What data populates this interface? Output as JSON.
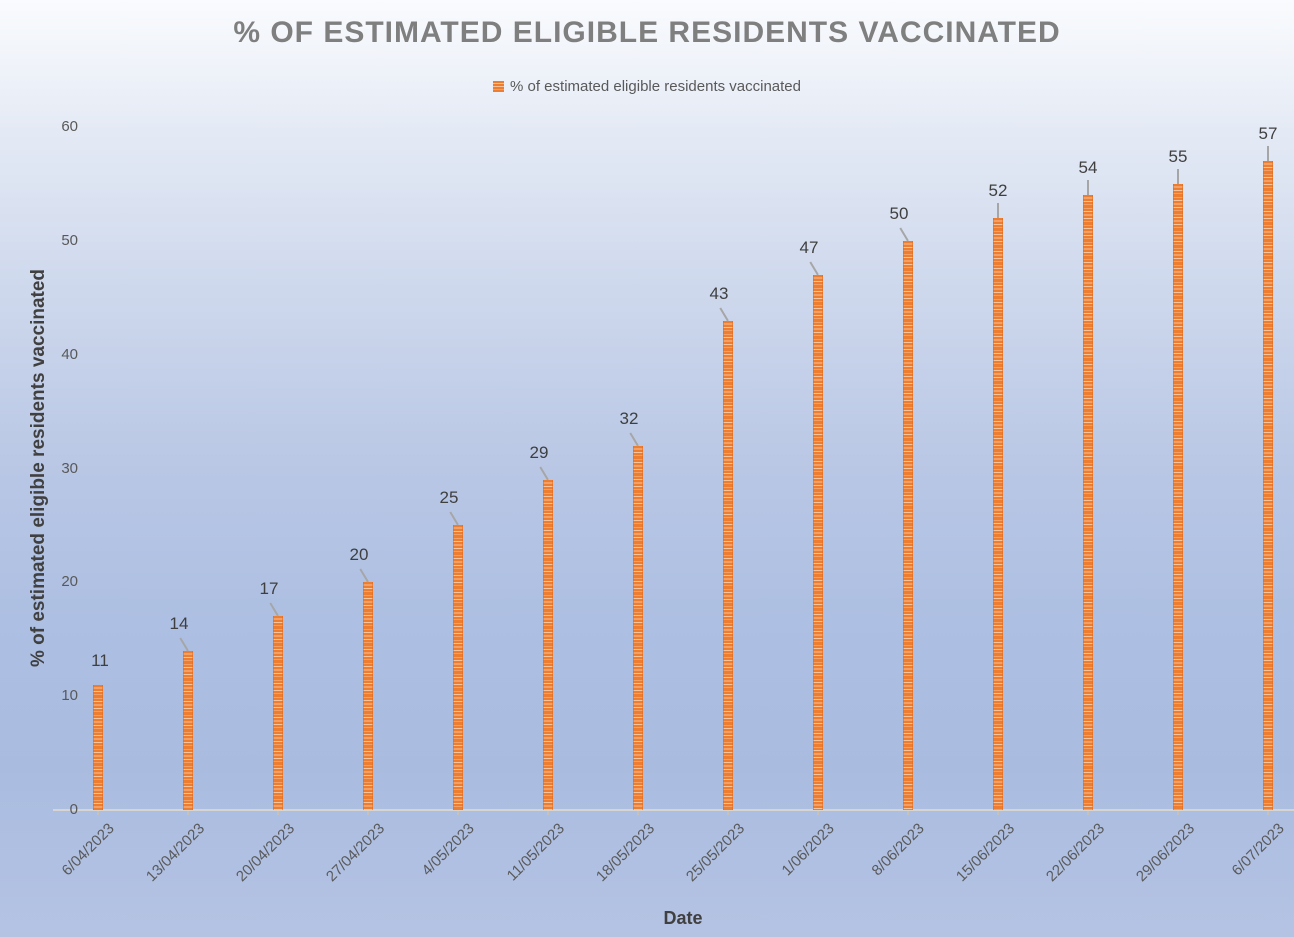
{
  "chart_data": {
    "type": "bar",
    "title": "% OF ESTIMATED ELIGIBLE RESIDENTS VACCINATED",
    "series_name": "% of estimated eligible residents vaccinated",
    "categories": [
      "6/04/2023",
      "13/04/2023",
      "20/04/2023",
      "27/04/2023",
      "4/05/2023",
      "11/05/2023",
      "18/05/2023",
      "25/05/2023",
      "1/06/2023",
      "8/06/2023",
      "15/06/2023",
      "22/06/2023",
      "29/06/2023",
      "6/07/2023"
    ],
    "values": [
      11,
      14,
      17,
      20,
      25,
      29,
      32,
      43,
      47,
      50,
      52,
      54,
      55,
      57
    ],
    "xlabel": "Date",
    "ylabel": "% of estimated eligible residents vaccinated",
    "ylim": [
      0,
      60
    ],
    "yticks": [
      0,
      10,
      20,
      30,
      40,
      50,
      60
    ],
    "bar_color": "#ED7D31",
    "stripe_color": "#F9C39C",
    "label_color": "#3F3F3F",
    "axis_text_color": "#595959",
    "title_color": "#7F7F7F",
    "leader_line_color": "#A6A6A6",
    "legend_position": "top",
    "grid": false,
    "data_labels": true
  }
}
